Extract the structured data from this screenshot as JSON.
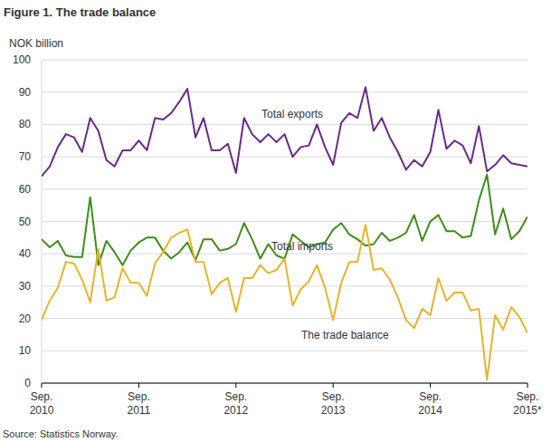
{
  "chart_data": {
    "type": "line",
    "title": "Figure 1. The trade balance",
    "y_label": "NOK billion",
    "source": "Source: Statistics Norway.",
    "categories": [
      "Sep. 2010",
      null,
      null,
      null,
      null,
      null,
      null,
      null,
      null,
      null,
      null,
      null,
      "Sep. 2011",
      null,
      null,
      null,
      null,
      null,
      null,
      null,
      null,
      null,
      null,
      null,
      "Sep. 2012",
      null,
      null,
      null,
      null,
      null,
      null,
      null,
      null,
      null,
      null,
      null,
      "Sep. 2013",
      null,
      null,
      null,
      null,
      null,
      null,
      null,
      null,
      null,
      null,
      null,
      "Sep. 2014",
      null,
      null,
      null,
      null,
      null,
      null,
      null,
      null,
      null,
      null,
      null,
      "Sep. 2015*"
    ],
    "series": [
      {
        "name": "Total exports",
        "color": "#6a2a86",
        "values": [
          64,
          67,
          73,
          77,
          76,
          71.5,
          82,
          78,
          69,
          67,
          72,
          72,
          75,
          72,
          82,
          81.5,
          83.5,
          87,
          91,
          76,
          82,
          72,
          72,
          74,
          65,
          82,
          77,
          74.5,
          77,
          74.5,
          77,
          70,
          73,
          73.5,
          80,
          73,
          67.5,
          80.5,
          83.5,
          82,
          91.5,
          78,
          82,
          76,
          71.5,
          66,
          69,
          67,
          71.5,
          84.5,
          72.5,
          75,
          73.5,
          68,
          79.5,
          65.5,
          67.5,
          70.5,
          68,
          67.5,
          67
        ]
      },
      {
        "name": "Total imports",
        "color": "#3f8c1c",
        "values": [
          44.5,
          42,
          44,
          39.5,
          39,
          39,
          57.5,
          36.5,
          44,
          40.5,
          36.5,
          41,
          43.5,
          45,
          45,
          41,
          38.5,
          40.5,
          43.5,
          38,
          44.5,
          44.5,
          41,
          41.5,
          43,
          49.5,
          44.5,
          38.5,
          43,
          39.5,
          38.5,
          46,
          44,
          42,
          43,
          43.5,
          47.5,
          49.5,
          46,
          44.5,
          42.5,
          43,
          46.5,
          44,
          45,
          46.5,
          52,
          44,
          50,
          52,
          47,
          47,
          45,
          45.5,
          56.5,
          64.5,
          46,
          54,
          44.5,
          47,
          51.5
        ]
      },
      {
        "name": "The trade balance",
        "color": "#e6b42c",
        "values": [
          19.5,
          25.5,
          29.5,
          37.5,
          37,
          32,
          25,
          41.5,
          25.5,
          26.5,
          35.5,
          31,
          31,
          27,
          37,
          40.5,
          45,
          46.5,
          47.5,
          37.5,
          37.5,
          27.5,
          31,
          32.5,
          22,
          32.5,
          32.5,
          36.5,
          34,
          35,
          38.5,
          24,
          29,
          31.5,
          36.5,
          29.5,
          19.5,
          31,
          37.5,
          37.5,
          49,
          35,
          35.5,
          32,
          26.5,
          19.5,
          17,
          23,
          21,
          32.5,
          25.5,
          28,
          28,
          22.5,
          23,
          1,
          21,
          16.5,
          23.5,
          20.5,
          15.5
        ]
      }
    ],
    "ylim": [
      0,
      100
    ],
    "yticks": [
      0,
      10,
      20,
      30,
      40,
      50,
      60,
      70,
      80,
      90,
      100
    ],
    "grid": true
  }
}
